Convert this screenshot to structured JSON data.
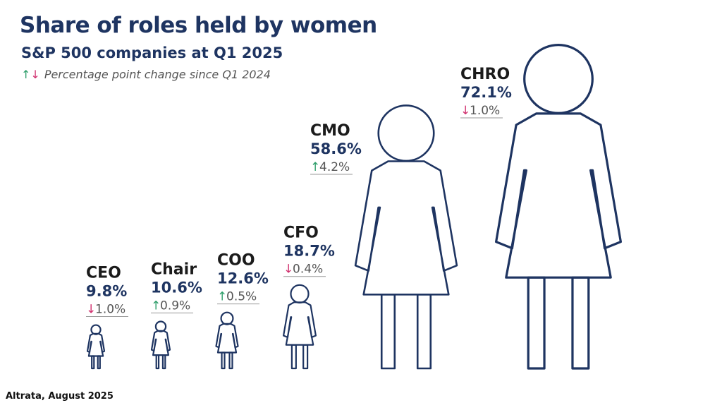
{
  "title": "Share of roles held by women",
  "subtitle": "S&P 500 companies at Q1 2025",
  "legend": {
    "up_arrow": "↑",
    "down_arrow": "↓",
    "text": "Percentage point change since Q1 2024"
  },
  "source": "Altrata, August 2025",
  "colors": {
    "figure": "#1e3461",
    "up": "#2e9e6a",
    "down": "#d0306e"
  },
  "chart_data": {
    "type": "pictogram",
    "categories": [
      "CEO",
      "Chair",
      "COO",
      "CFO",
      "CMO",
      "CHRO"
    ],
    "values": [
      9.8,
      10.6,
      12.6,
      18.7,
      58.6,
      72.1
    ],
    "value_labels": [
      "9.8%",
      "10.6%",
      "12.6%",
      "18.7%",
      "58.6%",
      "72.1%"
    ],
    "changes": [
      {
        "direction": "down",
        "text": "1.0%"
      },
      {
        "direction": "up",
        "text": "0.9%"
      },
      {
        "direction": "up",
        "text": "0.5%"
      },
      {
        "direction": "down",
        "text": "0.4%"
      },
      {
        "direction": "up",
        "text": "4.2%"
      },
      {
        "direction": "down",
        "text": "1.0%"
      }
    ]
  }
}
